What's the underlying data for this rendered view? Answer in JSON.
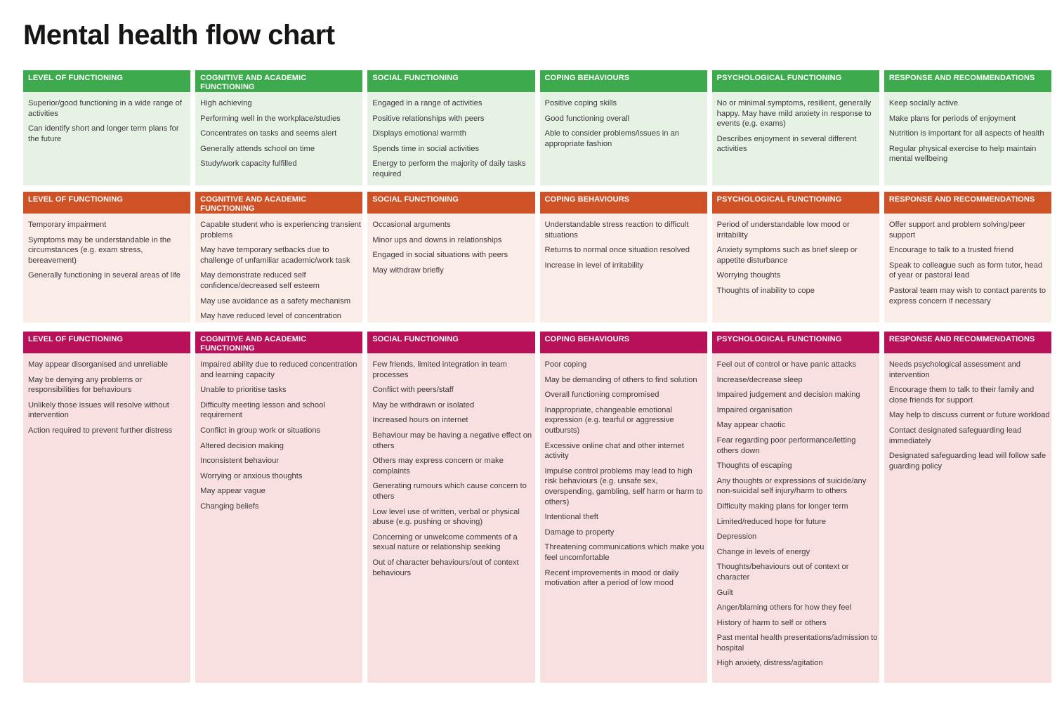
{
  "title": "Mental health flow chart",
  "columns": [
    "LEVEL OF FUNCTIONING",
    "COGNITIVE AND ACADEMIC FUNCTIONING",
    "SOCIAL FUNCTIONING",
    "COPING BEHAVIOURS",
    "PSYCHOLOGICAL FUNCTIONING",
    "RESPONSE AND RECOMMENDATIONS"
  ],
  "tiers": [
    {
      "id": "green",
      "header_color": "#3caa4d",
      "body_color": "#e6f2e4",
      "cells": [
        [
          "Superior/good functioning in a wide range of activities",
          "Can identify short and longer term plans for the future"
        ],
        [
          "High achieving",
          "Performing well in the workplace/studies",
          "Concentrates on tasks and seems alert",
          "Generally attends school on time",
          "Study/work capacity fulfilled"
        ],
        [
          "Engaged in a range of activities",
          "Positive relationships with peers",
          "Displays emotional warmth",
          "Spends time in social activities",
          "Energy to perform the majority of daily tasks required"
        ],
        [
          "Positive coping skills",
          "Good functioning overall",
          "Able to consider problems/issues in an appropriate fashion"
        ],
        [
          "No or minimal symptoms, resilient, generally happy. May have mild anxiety in response to events (e.g. exams)",
          "Describes enjoyment in several different activities"
        ],
        [
          "Keep socially active",
          "Make plans for periods of enjoyment",
          "Nutrition is important for all aspects of health",
          "Regular physical exercise to help maintain mental wellbeing"
        ]
      ]
    },
    {
      "id": "orange",
      "header_color": "#cf5227",
      "body_color": "#faece7",
      "cells": [
        [
          "Temporary impairment",
          "Symptoms may be understandable in the circumstances (e.g. exam stress, bereavement)",
          "Generally functioning in several areas of life"
        ],
        [
          "Capable student who is experiencing transient problems",
          "May have temporary setbacks due to challenge of unfamiliar academic/work task",
          "May demonstrate reduced self confidence/decreased self esteem",
          "May use avoidance as a safety mechanism",
          "May have reduced level of concentration"
        ],
        [
          "Occasional arguments",
          "Minor ups and downs in relationships",
          "Engaged in social situations with peers",
          "May withdraw briefly"
        ],
        [
          "Understandable stress reaction to difficult situations",
          "Returns to normal once situation resolved",
          "Increase in level of irritability"
        ],
        [
          "Period of understandable low mood or irritability",
          "Anxiety symptoms such as brief sleep or appetite disturbance",
          "Worrying thoughts",
          "Thoughts of inability to cope"
        ],
        [
          "Offer support and problem solving/peer support",
          "Encourage to talk to a trusted friend",
          "Speak to colleague such as form tutor, head of year or pastoral lead",
          "Pastoral team may wish to contact parents to express concern if necessary"
        ]
      ]
    },
    {
      "id": "crimson",
      "header_color": "#b8115a",
      "body_color": "#f7e0df",
      "cells": [
        [
          "May appear disorganised and unreliable",
          "May be denying any problems or responsibilities for behaviours",
          "Unlikely those issues will resolve without intervention",
          "Action required to prevent further distress"
        ],
        [
          "Impaired ability due to reduced concentration and learning capacity",
          "Unable to prioritise tasks",
          "Difficulty meeting lesson and school requirement",
          "Conflict in group work or situations",
          "Altered decision making",
          "Inconsistent behaviour",
          "Worrying or anxious thoughts",
          "May appear vague",
          "Changing beliefs"
        ],
        [
          "Few friends, limited integration in team processes",
          "Conflict with peers/staff",
          "May be withdrawn or isolated",
          "Increased hours on internet",
          "Behaviour may be having a negative effect on others",
          "Others may express concern or make complaints",
          "Generating rumours which cause concern to others",
          "Low level use of written, verbal or physical abuse (e.g. pushing or shoving)",
          "Concerning or unwelcome comments of a sexual nature or relationship seeking",
          "Out of character behaviours/out of context behaviours"
        ],
        [
          "Poor coping",
          "May be demanding of others to find solution",
          "Overall functioning compromised",
          "Inappropriate, changeable emotional expression (e.g. tearful or aggressive outbursts)",
          "Excessive online chat and other internet activity",
          "Impulse control problems may lead to high risk behaviours (e.g. unsafe sex, overspending, gambling, self harm or harm to others)",
          "Intentional theft",
          "Damage to property",
          "Threatening communications which make you feel uncomfortable",
          "Recent improvements in mood or daily motivation after a period of low mood"
        ],
        [
          "Feel out of control or have panic attacks",
          "Increase/decrease sleep",
          "Impaired judgement and decision making",
          "Impaired organisation",
          "May appear chaotic",
          "Fear regarding poor performance/letting others down",
          "Thoughts of escaping",
          "Any thoughts or expressions of suicide/any non-suicidal self injury/harm to others",
          "Difficulty making plans for longer term",
          "Limited/reduced hope for future",
          "Depression",
          "Change in levels of energy",
          "Thoughts/behaviours out of context or character",
          "Guilt",
          "Anger/blaming others for how they feel",
          "History of harm to self or others",
          "Past mental health presentations/admission to hospital",
          "High anxiety, distress/agitation"
        ],
        [
          "Needs psychological assessment and intervention",
          "Encourage them to talk to their family and close friends for support",
          "May help to discuss current or future workload",
          "Contact designated safeguarding lead immediately",
          "Designated safeguarding lead will follow safe guarding policy"
        ]
      ]
    }
  ]
}
